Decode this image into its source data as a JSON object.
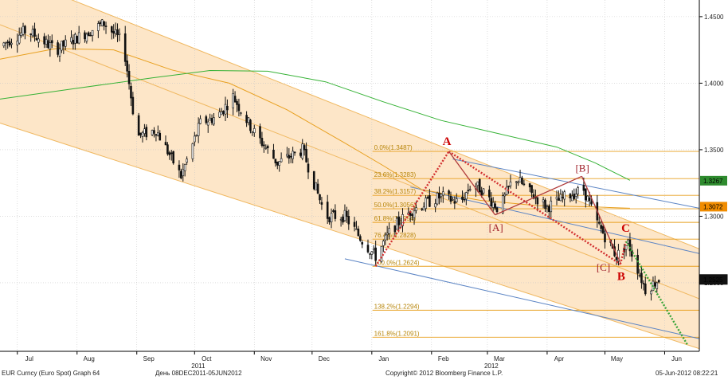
{
  "footer": {
    "left": "EUR Curncy (Euro Spot) Graph 64",
    "range": "День 08DEC2011-05JUN2012",
    "copyright": "Copyright© 2012 Bloomberg Finance L.P.",
    "stamp": "05-Jun-2012 08:22:21"
  },
  "chart_data": {
    "type": "candlestick",
    "series_name": "EUR Curncy",
    "x_ticks": [
      "Jul",
      "Aug",
      "Sep",
      "Oct",
      "Nov",
      "Dec",
      "Jan",
      "Feb",
      "Mar",
      "Apr",
      "May",
      "Jun"
    ],
    "x_tick_days": [
      0,
      31,
      62,
      92,
      123,
      153,
      184,
      215,
      244,
      275,
      305,
      336
    ],
    "year_labels": [
      {
        "label": "2011",
        "day": 92
      },
      {
        "label": "2012",
        "day": 244
      }
    ],
    "y_ticks": [
      "1.4500",
      "1.4000",
      "1.3500",
      "1.3000",
      "1.2500"
    ],
    "y_tick_values": [
      1.45,
      1.4,
      1.35,
      1.3,
      1.25
    ],
    "ylim": [
      1.1985,
      1.4625
    ],
    "xlim": [
      -9,
      354
    ],
    "price_tags": [
      {
        "label": "1.3267",
        "value": 1.3267,
        "color": "#2e8b2e"
      },
      {
        "label": "1.3072",
        "value": 1.3072,
        "color": "#f08c00"
      },
      {
        "label": "1.2525",
        "value": 1.2525,
        "color": "#111111"
      }
    ],
    "fibonacci": [
      {
        "label": "0.0%(1.3487)",
        "value": 1.3487
      },
      {
        "label": "23.6%(1.3283)",
        "value": 1.3283
      },
      {
        "label": "38.2%(1.3157)",
        "value": 1.3157
      },
      {
        "label": "50.0%(1.3056)",
        "value": 1.3056
      },
      {
        "label": "61.8%(1.2954)",
        "value": 1.2954
      },
      {
        "label": "76.4%(1.2828)",
        "value": 1.2828
      },
      {
        "label": "100.0%(1.2624)",
        "value": 1.2624
      },
      {
        "label": "138.2%(1.2294)",
        "value": 1.2294
      },
      {
        "label": "161.8%(1.2091)",
        "value": 1.2091
      }
    ],
    "anchors": [
      {
        "day": -9,
        "price": 1.428
      },
      {
        "day": 5,
        "price": 1.44
      },
      {
        "day": 20,
        "price": 1.425
      },
      {
        "day": 32,
        "price": 1.435
      },
      {
        "day": 45,
        "price": 1.445
      },
      {
        "day": 55,
        "price": 1.43
      },
      {
        "day": 62,
        "price": 1.36
      },
      {
        "day": 72,
        "price": 1.365
      },
      {
        "day": 85,
        "price": 1.33
      },
      {
        "day": 95,
        "price": 1.37
      },
      {
        "day": 104,
        "price": 1.375
      },
      {
        "day": 112,
        "price": 1.39
      },
      {
        "day": 122,
        "price": 1.365
      },
      {
        "day": 135,
        "price": 1.34
      },
      {
        "day": 148,
        "price": 1.35
      },
      {
        "day": 160,
        "price": 1.3
      },
      {
        "day": 170,
        "price": 1.3
      },
      {
        "day": 180,
        "price": 1.28
      },
      {
        "day": 186,
        "price": 1.27
      },
      {
        "day": 194,
        "price": 1.29
      },
      {
        "day": 205,
        "price": 1.305
      },
      {
        "day": 220,
        "price": 1.315
      },
      {
        "day": 230,
        "price": 1.31
      },
      {
        "day": 236,
        "price": 1.325
      },
      {
        "day": 241,
        "price": 1.32
      },
      {
        "day": 250,
        "price": 1.305
      },
      {
        "day": 258,
        "price": 1.33
      },
      {
        "day": 266,
        "price": 1.318
      },
      {
        "day": 275,
        "price": 1.307
      },
      {
        "day": 285,
        "price": 1.315
      },
      {
        "day": 294,
        "price": 1.32
      },
      {
        "day": 301,
        "price": 1.295
      },
      {
        "day": 311,
        "price": 1.27
      },
      {
        "day": 317,
        "price": 1.28
      },
      {
        "day": 326,
        "price": 1.245
      },
      {
        "day": 333,
        "price": 1.2525
      }
    ],
    "moving_average_orange": [
      {
        "day": -9,
        "price": 1.418
      },
      {
        "day": 20,
        "price": 1.426
      },
      {
        "day": 50,
        "price": 1.425
      },
      {
        "day": 80,
        "price": 1.41
      },
      {
        "day": 110,
        "price": 1.4
      },
      {
        "day": 140,
        "price": 1.38
      },
      {
        "day": 170,
        "price": 1.355
      },
      {
        "day": 190,
        "price": 1.338
      },
      {
        "day": 210,
        "price": 1.32
      },
      {
        "day": 240,
        "price": 1.312
      },
      {
        "day": 270,
        "price": 1.308
      },
      {
        "day": 300,
        "price": 1.307
      },
      {
        "day": 318,
        "price": 1.306
      }
    ],
    "moving_average_green": [
      {
        "day": -9,
        "price": 1.388
      },
      {
        "day": 30,
        "price": 1.396
      },
      {
        "day": 70,
        "price": 1.404
      },
      {
        "day": 100,
        "price": 1.4095
      },
      {
        "day": 130,
        "price": 1.409
      },
      {
        "day": 160,
        "price": 1.401
      },
      {
        "day": 190,
        "price": 1.386
      },
      {
        "day": 220,
        "price": 1.372
      },
      {
        "day": 250,
        "price": 1.362
      },
      {
        "day": 280,
        "price": 1.352
      },
      {
        "day": 300,
        "price": 1.34
      },
      {
        "day": 318,
        "price": 1.327
      }
    ],
    "channel_outer": {
      "fill": "#fde6c8",
      "upper": [
        {
          "day": 45,
          "price": 1.453
        },
        {
          "day": 354,
          "price": 1.2755
        }
      ],
      "lower": [
        {
          "day": -9,
          "price": 1.37
        },
        {
          "day": 354,
          "price": 1.2005
        }
      ],
      "middle": [
        {
          "day": -9,
          "price": 1.444
        },
        {
          "day": 354,
          "price": 1.238
        }
      ]
    },
    "channel_inner_blue": [
      {
        "start": {
          "day": 226,
          "price": 1.343
        },
        "end": {
          "day": 354,
          "price": 1.306
        }
      },
      {
        "start": {
          "day": 204,
          "price": 1.322
        },
        "end": {
          "day": 354,
          "price": 1.272
        }
      },
      {
        "start": {
          "day": 170,
          "price": 1.268
        },
        "end": {
          "day": 354,
          "price": 1.208
        }
      }
    ],
    "pattern_points": [
      {
        "label": "A",
        "day": 224,
        "price": 1.3487
      },
      {
        "label": "B",
        "day": 313,
        "price": 1.264
      },
      {
        "label": "C",
        "day": 316,
        "price": 1.281
      },
      {
        "label": "[A]",
        "day": 248,
        "price": 1.301
      },
      {
        "label": "[B]",
        "day": 293,
        "price": 1.33
      },
      {
        "label": "[C]",
        "day": 313,
        "price": 1.265
      }
    ],
    "pattern_origin": {
      "day": 186,
      "price": 1.2624
    },
    "projection_end": {
      "day": 348,
      "price": 1.203
    }
  }
}
